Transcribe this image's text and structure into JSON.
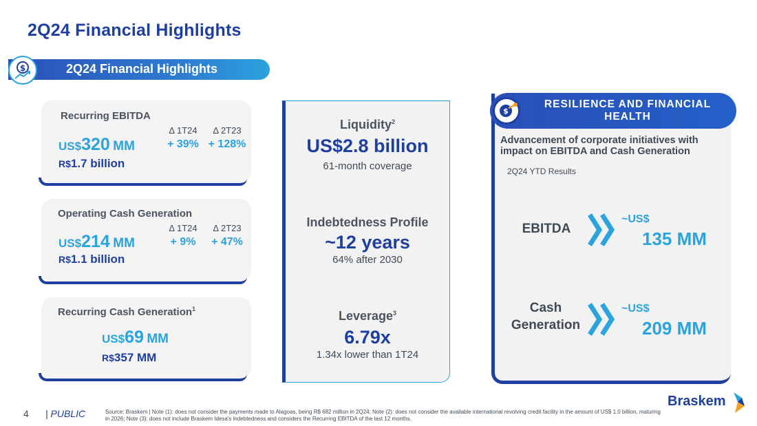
{
  "page_title": "2Q24 Financial Highlights",
  "banner": {
    "label": "2Q24 Financial Highlights",
    "icon": "dollar-growth-icon"
  },
  "cards": [
    {
      "label": "Recurring EBITDA",
      "usd_prefix": "US$",
      "usd_value": "320",
      "usd_unit": "MM",
      "brl_prefix": "R$",
      "brl_value": "1.7 billion",
      "delta1_label": "Δ 1T24",
      "delta1_value": "+ 39%",
      "delta2_label": "Δ 2T23",
      "delta2_value": "+ 128%"
    },
    {
      "label": "Operating Cash Generation",
      "usd_prefix": "US$",
      "usd_value": "214",
      "usd_unit": "MM",
      "brl_prefix": "R$",
      "brl_value": "1.1 billion",
      "delta1_label": "Δ 1T24",
      "delta1_value": "+ 9%",
      "delta2_label": "Δ 2T23",
      "delta2_value": "+ 47%"
    },
    {
      "label": "Recurring Cash Generation",
      "note": "1",
      "usd_prefix": "US$",
      "usd_value": "69",
      "usd_unit": "MM",
      "brl_prefix": "R$",
      "brl_value": "357 MM"
    }
  ],
  "middle": {
    "liquidity": {
      "label": "Liquidity",
      "note": "2",
      "value": "US$2.8 billion",
      "sub": "61-month coverage"
    },
    "indebtedness": {
      "label": "Indebtedness Profile",
      "value": "~12 years",
      "sub": "64% after 2030"
    },
    "leverage": {
      "label": "Leverage",
      "note": "3",
      "value": "6.79x",
      "sub": "1.34x lower than 1T24"
    }
  },
  "right": {
    "header": "RESILIENCE AND FINANCIAL HEALTH",
    "subtitle": "Advancement of corporate initiatives with impact on EBITDA and Cash Generation",
    "results_label": "2Q24 YTD Results",
    "items": [
      {
        "label": "EBITDA",
        "prefix": "~US$",
        "value": "135 MM"
      },
      {
        "label": "Cash Generation",
        "prefix": "~US$",
        "value": "209 MM"
      }
    ]
  },
  "footer": {
    "page_number": "4",
    "classification": "| PUBLIC",
    "source": "Source: Braskem | Note (1): does not consider the payments made to Alagoas, being R$ 682 million in 2Q24; Note (2): does not consider the available international revolving credit facility in the amount of US$ 1.0 billion, maturing in 2026; Note (3): does not include Braskem Idesa's indebtedness and considers the Recurring EBITDA of the last 12 months.",
    "logo": "Braskem"
  },
  "colors": {
    "navy": "#1f3fa0",
    "cyan": "#2aa3de",
    "card_bg": "#f3f3f3"
  }
}
